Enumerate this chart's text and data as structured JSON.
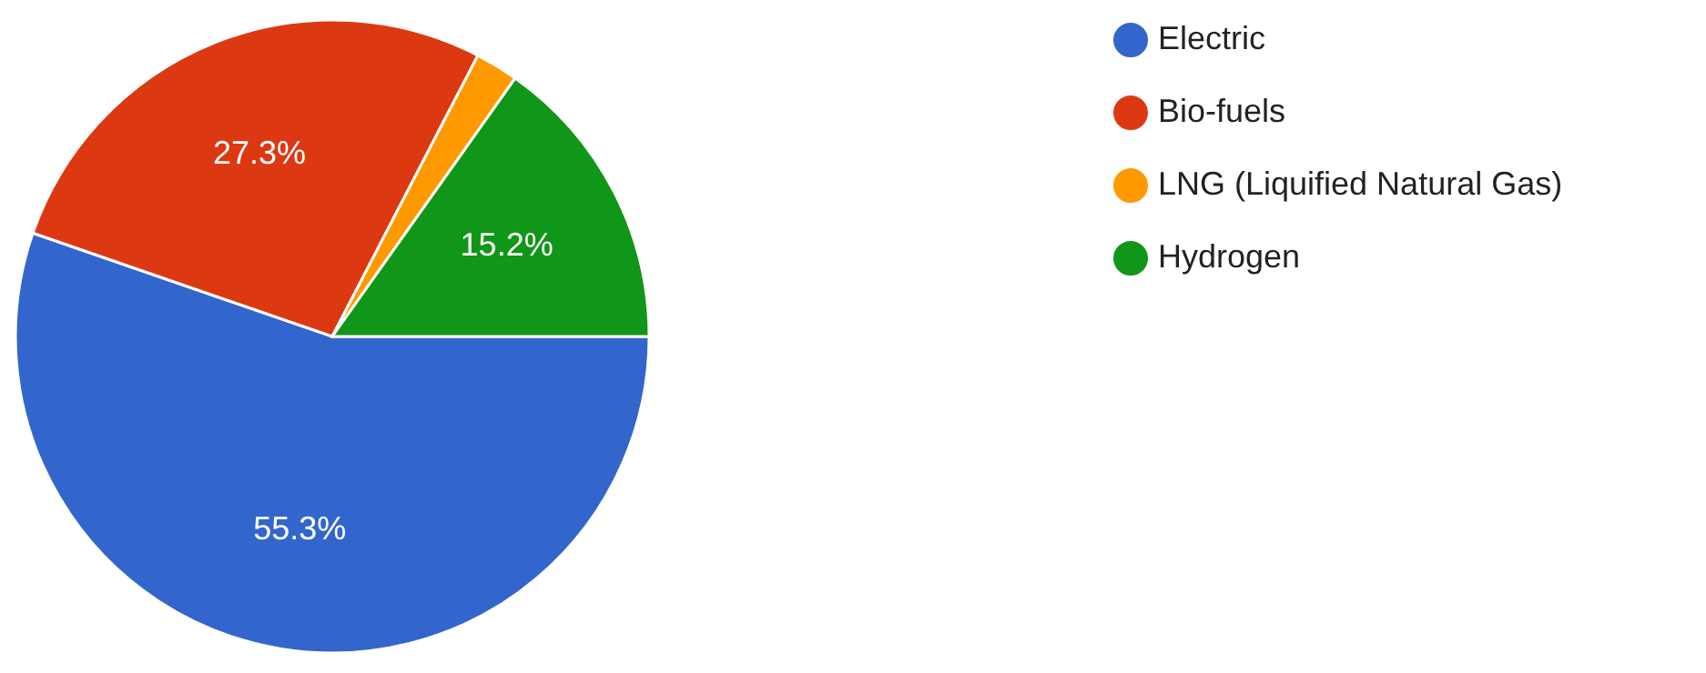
{
  "chart_data": {
    "type": "pie",
    "categories": [
      "Electric",
      "Bio-fuels",
      "LNG (Liquified Natural Gas)",
      "Hydrogen"
    ],
    "values": [
      55.3,
      27.3,
      2.2,
      15.2
    ],
    "colors": [
      "#3366cc",
      "#dc3912",
      "#ff9900",
      "#109618"
    ],
    "value_labels": [
      "55.3%",
      "27.3%",
      null,
      "15.2%"
    ],
    "legend": "top right"
  }
}
